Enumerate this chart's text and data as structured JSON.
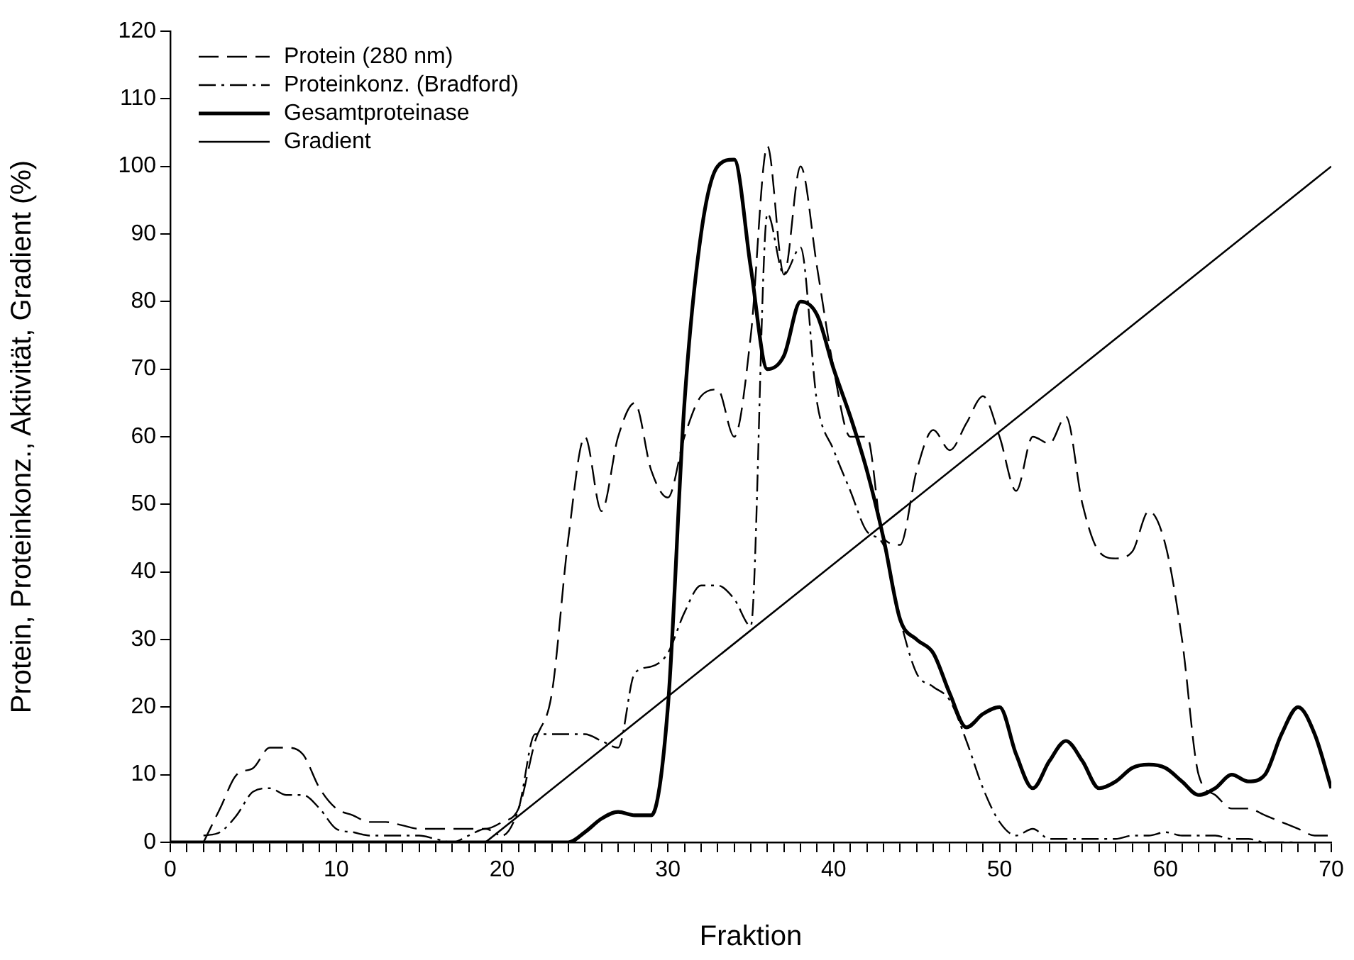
{
  "chart_data": {
    "type": "line",
    "xlabel": "Fraktion",
    "ylabel": "Protein, Proteinkonz., Aktivität, Gradient (%)",
    "xlim": [
      0,
      70
    ],
    "ylim": [
      0,
      120
    ],
    "xticks": [
      0,
      {
        "value": 1,
        "label": null
      },
      {
        "value": 2,
        "label": null
      },
      {
        "value": 3,
        "label": null
      },
      {
        "value": 4,
        "label": null
      },
      {
        "value": 5,
        "label": null
      },
      {
        "value": 6,
        "label": null
      },
      {
        "value": 7,
        "label": null
      },
      {
        "value": 8,
        "label": null
      },
      {
        "value": 9,
        "label": null
      },
      10,
      {
        "value": 11,
        "label": null
      },
      {
        "value": 12,
        "label": null
      },
      {
        "value": 13,
        "label": null
      },
      {
        "value": 14,
        "label": null
      },
      {
        "value": 15,
        "label": null
      },
      {
        "value": 16,
        "label": null
      },
      {
        "value": 17,
        "label": null
      },
      {
        "value": 18,
        "label": null
      },
      {
        "value": 19,
        "label": null
      },
      20,
      {
        "value": 21,
        "label": null
      },
      {
        "value": 22,
        "label": null
      },
      {
        "value": 23,
        "label": null
      },
      {
        "value": 24,
        "label": null
      },
      {
        "value": 25,
        "label": null
      },
      {
        "value": 26,
        "label": null
      },
      {
        "value": 27,
        "label": null
      },
      {
        "value": 28,
        "label": null
      },
      {
        "value": 29,
        "label": null
      },
      30,
      {
        "value": 31,
        "label": null
      },
      {
        "value": 32,
        "label": null
      },
      {
        "value": 33,
        "label": null
      },
      {
        "value": 34,
        "label": null
      },
      {
        "value": 35,
        "label": null
      },
      {
        "value": 36,
        "label": null
      },
      {
        "value": 37,
        "label": null
      },
      {
        "value": 38,
        "label": null
      },
      {
        "value": 39,
        "label": null
      },
      40,
      {
        "value": 41,
        "label": null
      },
      {
        "value": 42,
        "label": null
      },
      {
        "value": 43,
        "label": null
      },
      {
        "value": 44,
        "label": null
      },
      {
        "value": 45,
        "label": null
      },
      {
        "value": 46,
        "label": null
      },
      {
        "value": 47,
        "label": null
      },
      {
        "value": 48,
        "label": null
      },
      {
        "value": 49,
        "label": null
      },
      50,
      {
        "value": 51,
        "label": null
      },
      {
        "value": 52,
        "label": null
      },
      {
        "value": 53,
        "label": null
      },
      {
        "value": 54,
        "label": null
      },
      {
        "value": 55,
        "label": null
      },
      {
        "value": 56,
        "label": null
      },
      {
        "value": 57,
        "label": null
      },
      {
        "value": 58,
        "label": null
      },
      {
        "value": 59,
        "label": null
      },
      60,
      {
        "value": 61,
        "label": null
      },
      {
        "value": 62,
        "label": null
      },
      {
        "value": 63,
        "label": null
      },
      {
        "value": 64,
        "label": null
      },
      {
        "value": 65,
        "label": null
      },
      {
        "value": 66,
        "label": null
      },
      {
        "value": 67,
        "label": null
      },
      {
        "value": 68,
        "label": null
      },
      {
        "value": 69,
        "label": null
      },
      70
    ],
    "yticks": [
      0,
      10,
      20,
      30,
      40,
      50,
      60,
      70,
      80,
      90,
      100,
      110,
      120
    ],
    "grid": false,
    "legend": "top left",
    "marker": "none",
    "series": [
      {
        "name": "Protein (280 nm)",
        "color": "#000000",
        "line_style": "dashed",
        "x": [
          2,
          3,
          4,
          5,
          6,
          7,
          8,
          9,
          10,
          11,
          12,
          13,
          14,
          15,
          16,
          17,
          18,
          19,
          20,
          21,
          22,
          23,
          24,
          25,
          26,
          27,
          28,
          29,
          30,
          31,
          32,
          33,
          34,
          35,
          36,
          37,
          38,
          39,
          40,
          41,
          42,
          43,
          44,
          45,
          46,
          47,
          48,
          49,
          50,
          51,
          52,
          53,
          54,
          55,
          56,
          57,
          58,
          59,
          60,
          61,
          62,
          63,
          64,
          65,
          66,
          67,
          68,
          69,
          70
        ],
        "values": [
          0,
          5,
          10,
          11,
          14,
          14,
          13,
          8,
          5,
          4,
          3,
          3,
          2.5,
          2,
          2,
          2,
          2,
          2,
          3,
          5,
          15,
          22,
          45,
          60,
          49,
          60,
          65,
          55,
          51,
          60,
          66,
          67,
          60,
          75,
          103,
          84,
          100,
          85,
          70,
          60,
          60,
          45,
          44,
          55,
          61,
          58,
          62,
          66,
          60,
          52,
          60,
          59,
          63,
          50,
          43,
          42,
          43,
          49,
          44,
          30,
          10,
          7,
          5,
          5,
          4,
          3,
          2,
          1,
          1
        ]
      },
      {
        "name": "Proteinkonz. (Bradford)",
        "color": "#000000",
        "line_style": "dashdot",
        "x": [
          2,
          3,
          4,
          5,
          6,
          7,
          8,
          9,
          10,
          11,
          12,
          13,
          14,
          15,
          16,
          17,
          18,
          19,
          20,
          21,
          22,
          23,
          24,
          25,
          26,
          27,
          28,
          29,
          30,
          31,
          32,
          33,
          34,
          35,
          36,
          37,
          38,
          39,
          40,
          41,
          42,
          43,
          44,
          45,
          46,
          47,
          48,
          49,
          50,
          51,
          52,
          53,
          54,
          55,
          56,
          57,
          58,
          59,
          60,
          61,
          62,
          63,
          64,
          65,
          66,
          67,
          68
        ],
        "values": [
          1,
          1.5,
          4,
          7.5,
          8,
          7,
          7,
          5,
          2,
          1.5,
          1,
          1,
          1,
          1,
          0.5,
          0,
          1,
          2,
          1,
          5,
          16,
          16,
          16,
          16,
          15,
          14,
          25,
          26,
          28,
          34,
          38,
          38,
          36,
          32,
          93,
          84,
          88,
          65,
          58,
          52,
          46,
          44,
          33,
          25,
          23,
          21,
          15,
          8,
          3,
          1,
          2,
          0.5,
          0.5,
          0.5,
          0.5,
          0.5,
          1,
          1,
          1.5,
          1,
          1,
          1,
          0.5,
          0.5,
          0,
          0,
          0
        ]
      },
      {
        "name": "Gesamtproteinase",
        "color": "#000000",
        "line_style": "solid",
        "x": [
          0,
          22,
          24,
          25,
          26,
          27,
          28,
          29,
          30,
          31,
          32,
          33,
          34,
          35,
          36,
          37,
          38,
          39,
          40,
          41,
          42,
          43,
          44,
          45,
          46,
          47,
          48,
          49,
          50,
          51,
          52,
          53,
          54,
          55,
          56,
          57,
          58,
          59,
          60,
          61,
          62,
          63,
          64,
          65,
          66,
          67,
          68,
          69,
          70
        ],
        "values": [
          0,
          0,
          0,
          1.5,
          3.5,
          4.5,
          4,
          4,
          20,
          65,
          90,
          100,
          101,
          85,
          70,
          72,
          80,
          78,
          70,
          63,
          55,
          45,
          33,
          30,
          28,
          22,
          17,
          19,
          20,
          13,
          8,
          12,
          15,
          12,
          8,
          9,
          11,
          11.5,
          11,
          9,
          7,
          8,
          10,
          9,
          10,
          16,
          20,
          16,
          8
        ]
      },
      {
        "name": "Gradient",
        "color": "#000000",
        "line_style": "solid",
        "x": [
          19,
          70
        ],
        "values": [
          0,
          100
        ]
      }
    ]
  }
}
